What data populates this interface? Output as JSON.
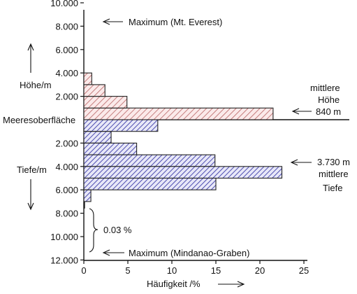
{
  "chart_data": {
    "type": "bar",
    "orientation": "horizontal",
    "xlabel": "Häufigkeit /%",
    "xlim": [
      0,
      25
    ],
    "xticks": [
      "0",
      "5",
      "10",
      "15",
      "20",
      "25"
    ],
    "ylabel_top": "Höhe/m",
    "ylabel_bottom": "Tiefe/m",
    "sea_level_label": "Meeresoberfläche",
    "yticks_top": [
      "10.000",
      "8.000",
      "6.000",
      "4.000",
      "2.000"
    ],
    "yticks_bottom": [
      "2.000",
      "4.000",
      "6.000",
      "8.000",
      "10.000",
      "12.000"
    ],
    "colors": {
      "land": "#c07070",
      "sea": "#5a5ab4"
    },
    "series": [
      {
        "region": "land",
        "bins": [
          {
            "from": 0,
            "to": 1000,
            "value": 21.5
          },
          {
            "from": 1000,
            "to": 2000,
            "value": 4.9
          },
          {
            "from": 2000,
            "to": 3000,
            "value": 2.4
          },
          {
            "from": 3000,
            "to": 4000,
            "value": 0.9
          }
        ]
      },
      {
        "region": "sea",
        "bins": [
          {
            "from": 0,
            "to": 1000,
            "value": 8.4
          },
          {
            "from": 1000,
            "to": 2000,
            "value": 3.1
          },
          {
            "from": 2000,
            "to": 3000,
            "value": 6.0
          },
          {
            "from": 3000,
            "to": 4000,
            "value": 14.9
          },
          {
            "from": 4000,
            "to": 5000,
            "value": 22.5
          },
          {
            "from": 5000,
            "to": 6000,
            "value": 15.0
          },
          {
            "from": 6000,
            "to": 7000,
            "value": 0.8
          }
        ]
      }
    ],
    "annotations": {
      "max_everest": "Maximum (Mt. Everest)",
      "mean_height_1": "mittlere",
      "mean_height_2": "Höhe",
      "mean_height_3": "840 m",
      "mean_depth_1": "3.730 m",
      "mean_depth_2": "mittlere",
      "mean_depth_3": "Tiefe",
      "deep_share": "0.03 %",
      "max_mindanao": "Maximum (Mindanao-Graben)"
    }
  }
}
